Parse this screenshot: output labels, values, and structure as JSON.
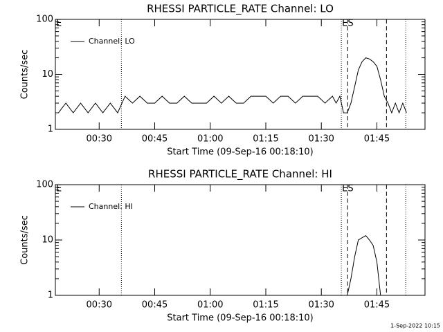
{
  "chart_data": [
    {
      "type": "line",
      "title": "RHESSI PARTICLE_RATE Channel: LO",
      "xlabel": "Start Time (09-Sep-16 00:18:10)",
      "ylabel": "Counts/sec",
      "log_y": true,
      "legend": "upper left",
      "xlim": [
        18.17,
        118
      ],
      "ylim": [
        1,
        100
      ],
      "yticks": [
        1,
        10,
        100
      ],
      "xticks": [
        {
          "value": 30,
          "label": "00:30"
        },
        {
          "value": 45,
          "label": "00:45"
        },
        {
          "value": 60,
          "label": "01:00"
        },
        {
          "value": 75,
          "label": "01:15"
        },
        {
          "value": 90,
          "label": "01:30"
        },
        {
          "value": 105,
          "label": "01:45"
        }
      ],
      "vlines": [
        {
          "x": 36,
          "style": "dotted"
        },
        {
          "x": 95.4,
          "style": "dotted"
        },
        {
          "x": 97.1,
          "style": "dashed"
        },
        {
          "x": 107.6,
          "style": "dashed"
        },
        {
          "x": 112.8,
          "style": "dotted"
        }
      ],
      "annotations": [
        "E",
        "ES"
      ],
      "series": [
        {
          "name": "Channel: LO",
          "color": "#000000",
          "x": [
            19,
            21,
            23,
            25,
            27,
            29,
            31,
            33,
            35,
            37,
            39,
            41,
            43,
            45,
            47,
            49,
            51,
            53,
            55,
            57,
            59,
            61,
            63,
            65,
            67,
            69,
            71,
            73,
            75,
            77,
            79,
            81,
            83,
            85,
            87,
            89,
            91,
            93,
            94,
            95,
            96,
            97,
            98,
            99,
            100,
            101,
            102,
            103,
            104,
            105,
            106,
            107,
            108,
            109,
            110,
            111,
            112,
            113
          ],
          "values": [
            2,
            3,
            2,
            3,
            2,
            3,
            2,
            3,
            2,
            4,
            3,
            4,
            3,
            3,
            4,
            3,
            3,
            4,
            3,
            3,
            3,
            4,
            3,
            4,
            3,
            3,
            4,
            4,
            4,
            3,
            4,
            4,
            3,
            4,
            4,
            4,
            3,
            4,
            3,
            4,
            2,
            2,
            3,
            6,
            12,
            17,
            20,
            19,
            17,
            14,
            8,
            4,
            3,
            2,
            3,
            2,
            3,
            2
          ]
        }
      ]
    },
    {
      "type": "line",
      "title": "RHESSI PARTICLE_RATE Channel: HI",
      "xlabel": "Start Time (09-Sep-16 00:18:10)",
      "ylabel": "Counts/sec",
      "log_y": true,
      "legend": "upper left",
      "xlim": [
        18.17,
        118
      ],
      "ylim": [
        1,
        100
      ],
      "yticks": [
        1,
        10,
        100
      ],
      "xticks": [
        {
          "value": 30,
          "label": "00:30"
        },
        {
          "value": 45,
          "label": "00:45"
        },
        {
          "value": 60,
          "label": "01:00"
        },
        {
          "value": 75,
          "label": "01:15"
        },
        {
          "value": 90,
          "label": "01:30"
        },
        {
          "value": 105,
          "label": "01:45"
        }
      ],
      "vlines": [
        {
          "x": 36,
          "style": "dotted"
        },
        {
          "x": 95.4,
          "style": "dotted"
        },
        {
          "x": 97.1,
          "style": "dashed"
        },
        {
          "x": 107.6,
          "style": "dashed"
        },
        {
          "x": 112.8,
          "style": "dotted"
        }
      ],
      "annotations": [
        "E",
        "ES"
      ],
      "series": [
        {
          "name": "Channel: HI",
          "color": "#000000",
          "x": [
            97,
            98,
            99,
            100,
            101,
            102,
            103,
            104,
            105,
            106
          ],
          "values": [
            1,
            2,
            5,
            10,
            11,
            12,
            10,
            8,
            4,
            1
          ]
        }
      ]
    }
  ],
  "footer": "1-Sep-2022 10:15"
}
